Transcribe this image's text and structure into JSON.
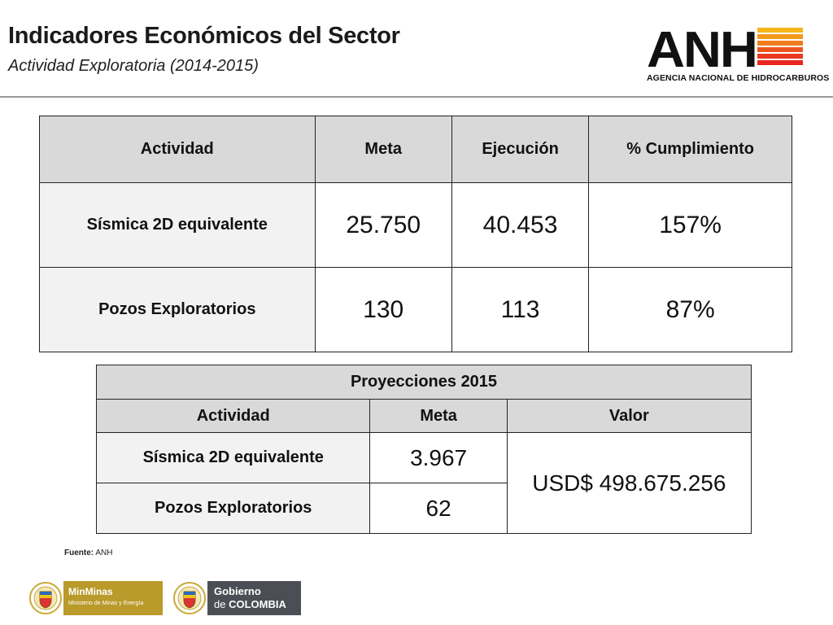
{
  "header": {
    "title": "Indicadores Económicos del Sector",
    "subtitle": "Actividad Exploratoria (2014-2015)"
  },
  "logo": {
    "name": "ANH",
    "agency": "AGENCIA NACIONAL DE HIDROCARBUROS",
    "stripe_colors": [
      "#e9261f",
      "#f07d1c",
      "#f5b51a"
    ]
  },
  "table1": {
    "headers": [
      "Actividad",
      "Meta",
      "Ejecución",
      "% Cumplimiento"
    ],
    "rows": [
      {
        "actividad": "Sísmica 2D equivalente",
        "meta": "25.750",
        "ejecucion": "40.453",
        "cumplimiento": "157%"
      },
      {
        "actividad": "Pozos Exploratorios",
        "meta": "130",
        "ejecucion": "113",
        "cumplimiento": "87%"
      }
    ]
  },
  "table2": {
    "caption": "Proyecciones 2015",
    "headers": [
      "Actividad",
      "Meta",
      "Valor"
    ],
    "rows": [
      {
        "actividad": "Sísmica 2D equivalente",
        "meta": "3.967"
      },
      {
        "actividad": "Pozos Exploratorios",
        "meta": "62"
      }
    ],
    "valor": "USD$ 498.675.256"
  },
  "source": {
    "label": "Fuente:",
    "value": "ANH"
  },
  "footer": {
    "ministry_name": "MinMinas",
    "ministry_sub": "Ministerio de Minas y Energía",
    "gob_line1": "Gobierno",
    "gob_line2_prefix": "de",
    "gob_line2_bold": "COLOMBIA",
    "brand_gold": "#b99a2a",
    "brand_gray": "#4b4f55"
  }
}
